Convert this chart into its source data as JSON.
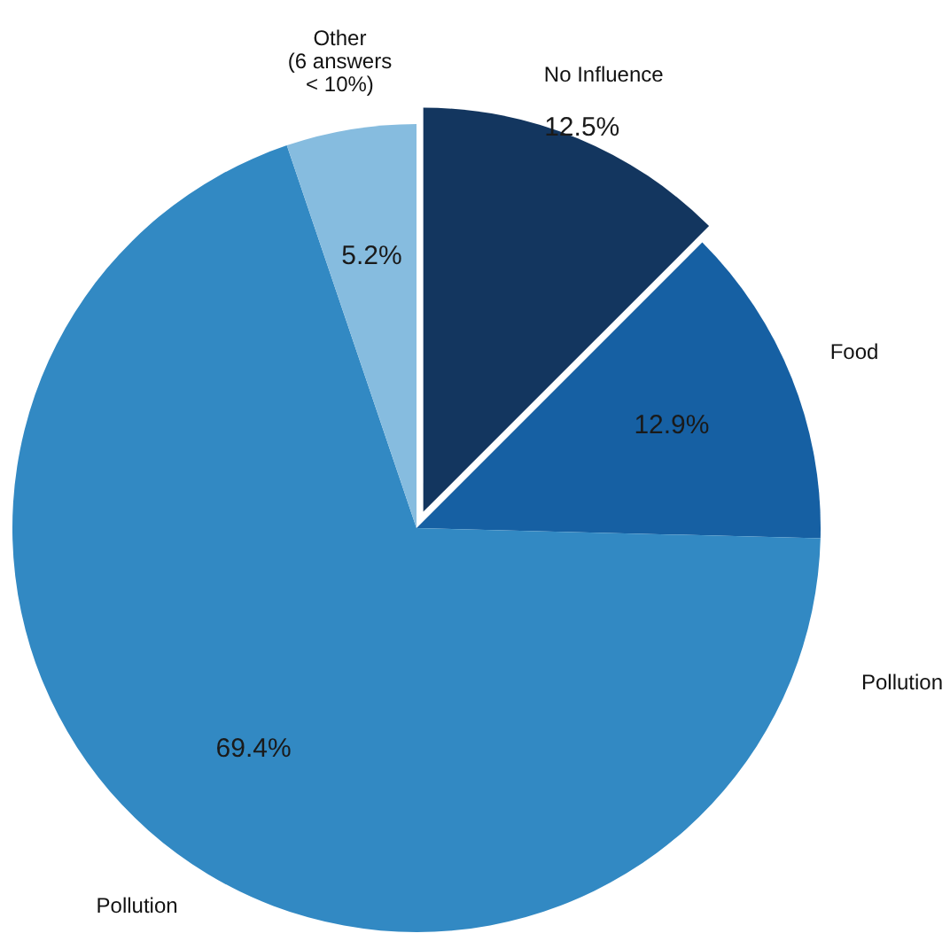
{
  "chart_data": {
    "type": "pie",
    "categories": [
      "No Influence",
      "Food",
      "Pollution",
      "Other\n(6 answers\n< 10%)"
    ],
    "values": [
      12.5,
      12.9,
      69.4,
      5.2
    ],
    "colors": [
      "#13365f",
      "#1660a3",
      "#3289c3",
      "#86bcdf"
    ],
    "value_labels": [
      "12.5%",
      "12.9%",
      "69.4%",
      "5.2%"
    ],
    "annotations": [
      "Pollution"
    ]
  }
}
